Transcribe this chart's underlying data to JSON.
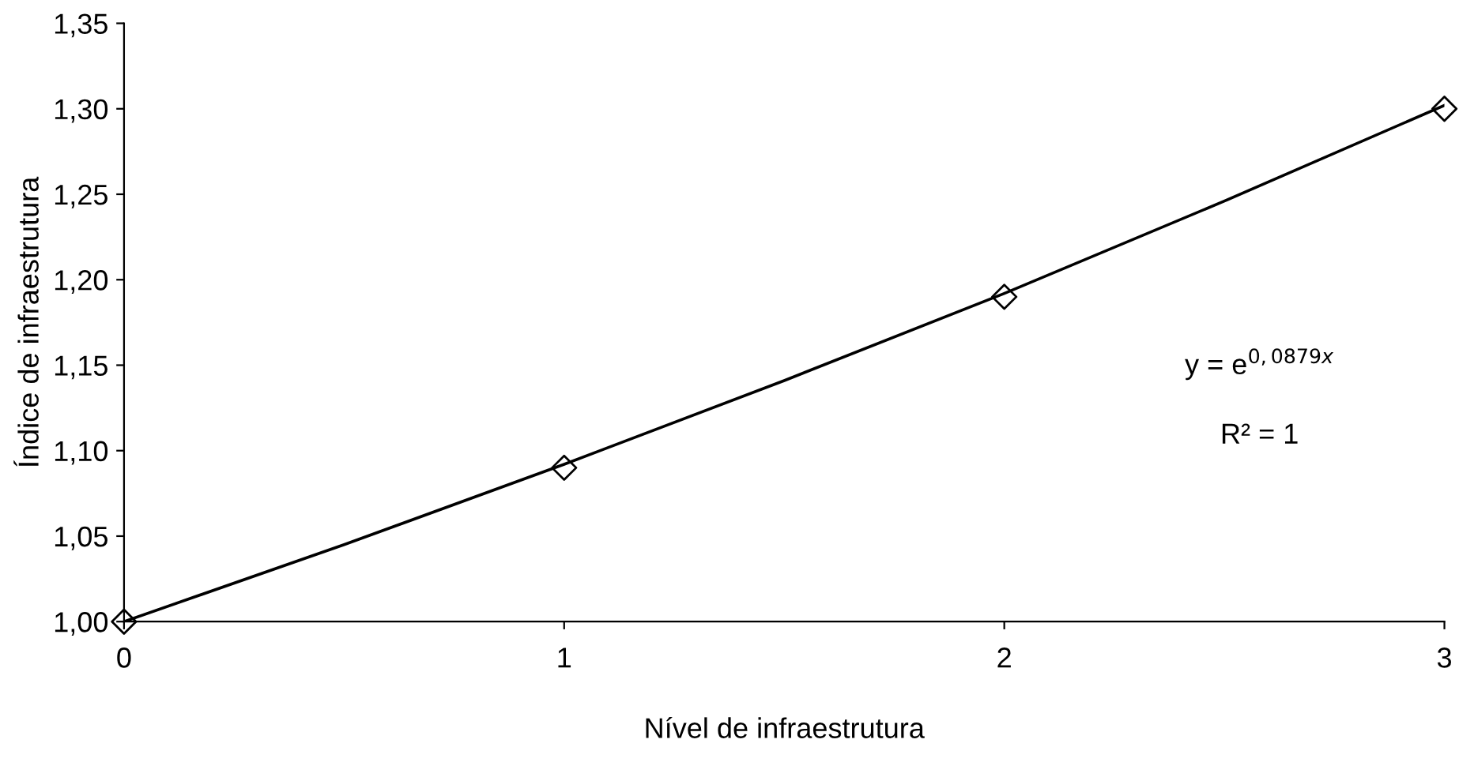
{
  "chart_data": {
    "type": "scatter",
    "xlabel": "Nível de infraestrutura",
    "ylabel": "Índice de infraestrutura",
    "series": [
      {
        "color": "#000000",
        "marker": "diamond",
        "x": [
          0,
          1,
          2,
          3
        ],
        "values": [
          1.0,
          1.09,
          1.19,
          1.3
        ]
      },
      {
        "type": "line",
        "color": "#000000",
        "marker": "none",
        "line_style": "solid",
        "x": [
          0,
          0.5,
          1,
          1.5,
          2,
          2.5,
          3
        ],
        "values": [
          1.0,
          1.045,
          1.092,
          1.141,
          1.192,
          1.246,
          1.302
        ]
      }
    ],
    "xlim": [
      0,
      3
    ],
    "xticks": [
      0,
      1,
      2,
      3
    ],
    "ylim": [
      1.0,
      1.35
    ],
    "yticks": [
      {
        "value": 1.0,
        "label": "1,00"
      },
      {
        "value": 1.05,
        "label": "1,05"
      },
      {
        "value": 1.1,
        "label": "1,10"
      },
      {
        "value": 1.15,
        "label": "1,15"
      },
      {
        "value": 1.2,
        "label": "1,20"
      },
      {
        "value": 1.25,
        "label": "1,25"
      },
      {
        "value": 1.3,
        "label": "1,30"
      },
      {
        "value": 1.35,
        "label": "1,35"
      }
    ],
    "grid": false,
    "annotations": [
      "y = e$^{0,0879x}$",
      "R² = 1"
    ]
  }
}
